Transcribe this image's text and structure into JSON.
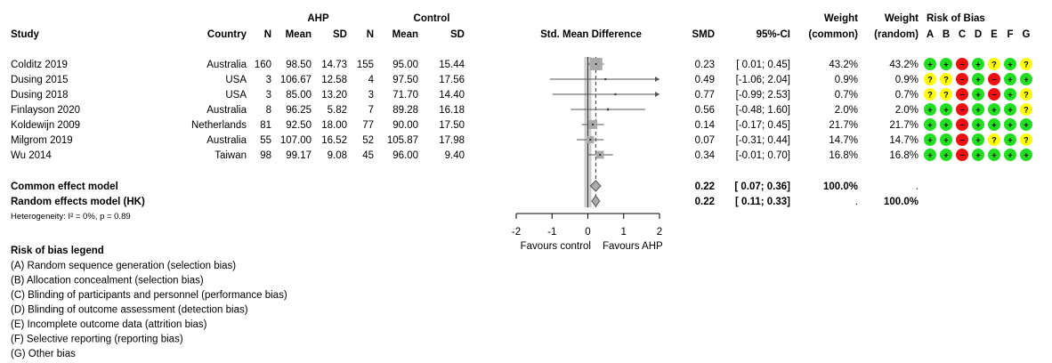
{
  "chart_data": {
    "type": "forest",
    "header": {
      "group1": "AHP",
      "group2": "Control",
      "study": "Study",
      "country": "Country",
      "n": "N",
      "mean": "Mean",
      "sd": "SD",
      "plot": "Std. Mean Difference",
      "smd": "SMD",
      "ci": "95%-CI",
      "weight": "Weight",
      "weight_common": "(common)",
      "weight_random": "(random)",
      "rob": "Risk of Bias",
      "rob_cols": [
        "A",
        "B",
        "C",
        "D",
        "E",
        "F",
        "G"
      ]
    },
    "studies": [
      {
        "study": "Colditz 2019",
        "country": "Australia",
        "n1": "160",
        "m1": "98.50",
        "sd1": "14.73",
        "n2": "155",
        "m2": "95.00",
        "sd2": "15.44",
        "smd": 0.23,
        "lo": 0.01,
        "hi": 0.45,
        "smd_txt": "0.23",
        "ci_txt": "[ 0.01; 0.45]",
        "wc": "43.2%",
        "wr": "43.2%",
        "wc_num": 43.2,
        "rob": [
          "+",
          "+",
          "-",
          "+",
          "?",
          "+",
          "?"
        ]
      },
      {
        "study": "Dusing 2015",
        "country": "USA",
        "n1": "3",
        "m1": "106.67",
        "sd1": "12.58",
        "n2": "4",
        "m2": "97.50",
        "sd2": "17.56",
        "smd": 0.49,
        "lo": -1.06,
        "hi": 2.04,
        "smd_txt": "0.49",
        "ci_txt": "[-1.06; 2.04]",
        "wc": "0.9%",
        "wr": "0.9%",
        "wc_num": 0.9,
        "rob": [
          "?",
          "?",
          "-",
          "+",
          "-",
          "+",
          "+"
        ]
      },
      {
        "study": "Dusing 2018",
        "country": "USA",
        "n1": "3",
        "m1": "85.00",
        "sd1": "13.20",
        "n2": "3",
        "m2": "71.70",
        "sd2": "14.40",
        "smd": 0.77,
        "lo": -0.99,
        "hi": 2.53,
        "smd_txt": "0.77",
        "ci_txt": "[-0.99; 2.53]",
        "wc": "0.7%",
        "wr": "0.7%",
        "wc_num": 0.7,
        "rob": [
          "?",
          "?",
          "-",
          "+",
          "-",
          "+",
          "?"
        ]
      },
      {
        "study": "Finlayson 2020",
        "country": "Australia",
        "n1": "8",
        "m1": "96.25",
        "sd1": "5.82",
        "n2": "7",
        "m2": "89.28",
        "sd2": "16.18",
        "smd": 0.56,
        "lo": -0.48,
        "hi": 1.6,
        "smd_txt": "0.56",
        "ci_txt": "[-0.48; 1.60]",
        "wc": "2.0%",
        "wr": "2.0%",
        "wc_num": 2.0,
        "rob": [
          "+",
          "+",
          "-",
          "+",
          "+",
          "+",
          "?"
        ]
      },
      {
        "study": "Koldewijn 2009",
        "country": "Netherlands",
        "n1": "81",
        "m1": "92.50",
        "sd1": "18.00",
        "n2": "77",
        "m2": "90.00",
        "sd2": "17.50",
        "smd": 0.14,
        "lo": -0.17,
        "hi": 0.45,
        "smd_txt": "0.14",
        "ci_txt": "[-0.17; 0.45]",
        "wc": "21.7%",
        "wr": "21.7%",
        "wc_num": 21.7,
        "rob": [
          "+",
          "+",
          "-",
          "+",
          "+",
          "+",
          "+"
        ]
      },
      {
        "study": "Milgrom 2019",
        "country": "Australia",
        "n1": "55",
        "m1": "107.00",
        "sd1": "16.52",
        "n2": "52",
        "m2": "105.87",
        "sd2": "17.98",
        "smd": 0.07,
        "lo": -0.31,
        "hi": 0.44,
        "smd_txt": "0.07",
        "ci_txt": "[-0.31; 0.44]",
        "wc": "14.7%",
        "wr": "14.7%",
        "wc_num": 14.7,
        "rob": [
          "+",
          "+",
          "-",
          "+",
          "?",
          "+",
          "?"
        ]
      },
      {
        "study": "Wu 2014",
        "country": "Taiwan",
        "n1": "98",
        "m1": "99.17",
        "sd1": "9.08",
        "n2": "45",
        "m2": "96.00",
        "sd2": "9.40",
        "smd": 0.34,
        "lo": -0.01,
        "hi": 0.7,
        "smd_txt": "0.34",
        "ci_txt": "[-0.01; 0.70]",
        "wc": "16.8%",
        "wr": "16.8%",
        "wc_num": 16.8,
        "rob": [
          "+",
          "+",
          "-",
          "+",
          "+",
          "+",
          "+"
        ]
      }
    ],
    "pooled": [
      {
        "label": "Common effect model",
        "smd": 0.22,
        "lo": 0.07,
        "hi": 0.36,
        "smd_txt": "0.22",
        "ci_txt": "[ 0.07; 0.36]",
        "wc": "100.0%",
        "wr": "."
      },
      {
        "label": "Random effects model (HK)",
        "smd": 0.22,
        "lo": 0.11,
        "hi": 0.33,
        "smd_txt": "0.22",
        "ci_txt": "[ 0.11; 0.33]",
        "wc": ".",
        "wr": "100.0%"
      }
    ],
    "heterogeneity": "Heterogeneity: I² = 0%, p = 0.89",
    "x_axis": {
      "min": -2,
      "max": 2,
      "ticks": [
        -2,
        -1,
        0,
        1,
        2
      ],
      "tick_labels": [
        "-2",
        "-1",
        "0",
        "1",
        "2"
      ]
    },
    "favours_left": "Favours control",
    "favours_right": "Favours AHP",
    "legend_title": "Risk of bias legend",
    "legend_items": [
      "(A) Random sequence generation (selection bias)",
      "(B) Allocation concealment (selection bias)",
      "(C) Blinding of participants and personnel (performance bias)",
      "(D) Blinding of outcome assessment (detection bias)",
      "(E) Incomplete outcome data (attrition bias)",
      "(F) Selective reporting (reporting bias)",
      "(G) Other bias"
    ],
    "colors": {
      "low": "#22dd22",
      "high": "#ee1111",
      "unclear": "#ffff00",
      "square": "#aaaaaa",
      "line": "#555555",
      "diamond": "#aaaaaa"
    }
  }
}
